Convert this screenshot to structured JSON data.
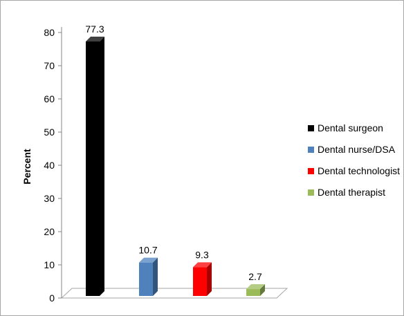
{
  "chart_data": {
    "type": "bar",
    "title": "",
    "xlabel": "",
    "ylabel": "Percent",
    "ylim": [
      0,
      80
    ],
    "ytick_step": 10,
    "grid": false,
    "legend_position": "right",
    "categories": [
      "Dental surgeon",
      "Dental nurse/DSA",
      "Dental technologist",
      "Dental therapist"
    ],
    "values": [
      77.3,
      10.7,
      9.3,
      2.7
    ],
    "data_labels": [
      "77.3",
      "10.7",
      "9.3",
      "2.7"
    ],
    "colors": [
      "#000000",
      "#4f81bd",
      "#ff0000",
      "#9bbb59"
    ],
    "style": "3d-column"
  }
}
